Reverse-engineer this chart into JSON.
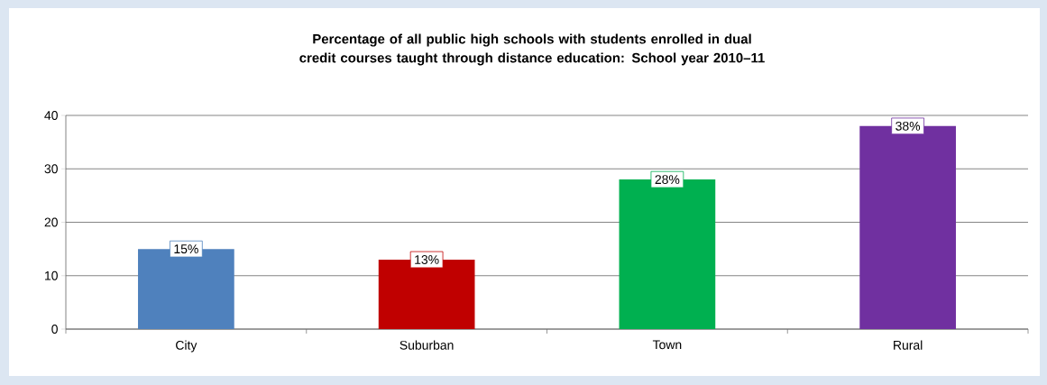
{
  "chart_data": {
    "type": "bar",
    "title": "Percentage of all public high schools with students enrolled in dual credit courses taught through distance education: School year 2010–11",
    "categories": [
      "City",
      "Suburban",
      "Town",
      "Rural"
    ],
    "values": [
      15,
      13,
      28,
      38
    ],
    "colors": [
      "#4f81bd",
      "#c00000",
      "#00b050",
      "#7030a0"
    ],
    "value_labels": [
      "15%",
      "13%",
      "28%",
      "38%"
    ],
    "ylim": [
      0,
      40
    ],
    "yticks": [
      0,
      10,
      20,
      30,
      40
    ],
    "grid": "y"
  }
}
